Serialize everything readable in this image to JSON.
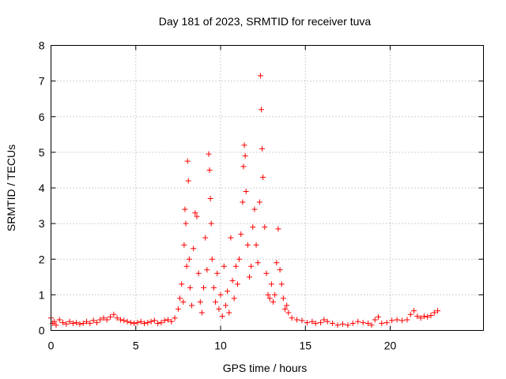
{
  "chart_data": {
    "type": "scatter",
    "title": "Day 181 of 2023, SRMTID for receiver tuva",
    "xlabel": "GPS time / hours",
    "ylabel": "SRMTID / TECUs",
    "xlim": [
      0,
      25.5
    ],
    "ylim": [
      0,
      8
    ],
    "xticks": [
      0,
      5,
      10,
      15,
      20
    ],
    "yticks": [
      0,
      1,
      2,
      3,
      4,
      5,
      6,
      7,
      8
    ],
    "grid": true,
    "marker": "+",
    "series_color": "#ff0000",
    "series": [
      {
        "name": "SRMTID",
        "points": [
          [
            0.0,
            0.35
          ],
          [
            0.1,
            0.2
          ],
          [
            0.2,
            0.25
          ],
          [
            0.3,
            0.15
          ],
          [
            0.5,
            0.3
          ],
          [
            0.7,
            0.22
          ],
          [
            0.9,
            0.18
          ],
          [
            1.1,
            0.25
          ],
          [
            1.3,
            0.2
          ],
          [
            1.5,
            0.22
          ],
          [
            1.7,
            0.18
          ],
          [
            1.9,
            0.2
          ],
          [
            2.1,
            0.25
          ],
          [
            2.3,
            0.2
          ],
          [
            2.5,
            0.28
          ],
          [
            2.7,
            0.22
          ],
          [
            2.9,
            0.3
          ],
          [
            3.1,
            0.35
          ],
          [
            3.3,
            0.3
          ],
          [
            3.5,
            0.38
          ],
          [
            3.7,
            0.45
          ],
          [
            3.9,
            0.35
          ],
          [
            4.1,
            0.3
          ],
          [
            4.3,
            0.28
          ],
          [
            4.5,
            0.25
          ],
          [
            4.7,
            0.22
          ],
          [
            4.9,
            0.2
          ],
          [
            5.1,
            0.22
          ],
          [
            5.3,
            0.25
          ],
          [
            5.5,
            0.2
          ],
          [
            5.7,
            0.22
          ],
          [
            5.9,
            0.25
          ],
          [
            6.1,
            0.28
          ],
          [
            6.3,
            0.2
          ],
          [
            6.5,
            0.22
          ],
          [
            6.7,
            0.28
          ],
          [
            6.9,
            0.3
          ],
          [
            7.1,
            0.25
          ],
          [
            7.3,
            0.35
          ],
          [
            7.5,
            0.6
          ],
          [
            7.6,
            0.9
          ],
          [
            7.7,
            1.3
          ],
          [
            7.8,
            0.8
          ],
          [
            7.85,
            2.4
          ],
          [
            7.9,
            3.4
          ],
          [
            7.95,
            3.0
          ],
          [
            8.0,
            1.8
          ],
          [
            8.05,
            4.75
          ],
          [
            8.1,
            4.2
          ],
          [
            8.15,
            2.0
          ],
          [
            8.2,
            1.2
          ],
          [
            8.3,
            0.7
          ],
          [
            8.4,
            2.3
          ],
          [
            8.5,
            3.3
          ],
          [
            8.6,
            3.2
          ],
          [
            8.7,
            1.6
          ],
          [
            8.8,
            0.8
          ],
          [
            8.9,
            0.5
          ],
          [
            9.0,
            1.2
          ],
          [
            9.1,
            2.6
          ],
          [
            9.2,
            1.7
          ],
          [
            9.3,
            4.95
          ],
          [
            9.35,
            4.5
          ],
          [
            9.4,
            3.7
          ],
          [
            9.45,
            3.0
          ],
          [
            9.5,
            2.0
          ],
          [
            9.6,
            1.2
          ],
          [
            9.7,
            0.8
          ],
          [
            9.8,
            1.6
          ],
          [
            9.9,
            0.6
          ],
          [
            10.0,
            1.0
          ],
          [
            10.1,
            0.4
          ],
          [
            10.2,
            1.8
          ],
          [
            10.3,
            0.7
          ],
          [
            10.4,
            1.1
          ],
          [
            10.5,
            0.5
          ],
          [
            10.6,
            2.6
          ],
          [
            10.7,
            1.4
          ],
          [
            10.8,
            0.9
          ],
          [
            10.9,
            1.8
          ],
          [
            11.0,
            1.3
          ],
          [
            11.1,
            2.0
          ],
          [
            11.2,
            2.7
          ],
          [
            11.3,
            3.6
          ],
          [
            11.35,
            4.6
          ],
          [
            11.4,
            5.2
          ],
          [
            11.45,
            4.9
          ],
          [
            11.5,
            3.9
          ],
          [
            11.6,
            2.4
          ],
          [
            11.7,
            1.5
          ],
          [
            11.8,
            1.8
          ],
          [
            11.9,
            2.9
          ],
          [
            12.0,
            3.4
          ],
          [
            12.1,
            2.4
          ],
          [
            12.2,
            1.9
          ],
          [
            12.3,
            3.6
          ],
          [
            12.35,
            7.15
          ],
          [
            12.4,
            6.2
          ],
          [
            12.45,
            5.1
          ],
          [
            12.5,
            4.3
          ],
          [
            12.6,
            2.9
          ],
          [
            12.7,
            1.6
          ],
          [
            12.8,
            1.0
          ],
          [
            12.9,
            0.9
          ],
          [
            13.0,
            1.3
          ],
          [
            13.1,
            0.8
          ],
          [
            13.2,
            1.0
          ],
          [
            13.3,
            1.9
          ],
          [
            13.4,
            2.85
          ],
          [
            13.5,
            1.7
          ],
          [
            13.6,
            1.3
          ],
          [
            13.7,
            0.9
          ],
          [
            13.8,
            0.6
          ],
          [
            13.9,
            0.7
          ],
          [
            14.0,
            0.5
          ],
          [
            14.2,
            0.35
          ],
          [
            14.5,
            0.3
          ],
          [
            14.8,
            0.28
          ],
          [
            15.1,
            0.22
          ],
          [
            15.4,
            0.25
          ],
          [
            15.6,
            0.2
          ],
          [
            15.9,
            0.22
          ],
          [
            16.1,
            0.3
          ],
          [
            16.3,
            0.25
          ],
          [
            16.6,
            0.2
          ],
          [
            16.9,
            0.15
          ],
          [
            17.2,
            0.18
          ],
          [
            17.5,
            0.15
          ],
          [
            17.8,
            0.2
          ],
          [
            18.1,
            0.25
          ],
          [
            18.4,
            0.22
          ],
          [
            18.7,
            0.2
          ],
          [
            18.9,
            0.15
          ],
          [
            19.1,
            0.3
          ],
          [
            19.3,
            0.38
          ],
          [
            19.5,
            0.2
          ],
          [
            19.8,
            0.22
          ],
          [
            20.1,
            0.28
          ],
          [
            20.4,
            0.3
          ],
          [
            20.7,
            0.28
          ],
          [
            21.0,
            0.3
          ],
          [
            21.2,
            0.45
          ],
          [
            21.4,
            0.55
          ],
          [
            21.6,
            0.4
          ],
          [
            21.8,
            0.35
          ],
          [
            22.0,
            0.4
          ],
          [
            22.2,
            0.38
          ],
          [
            22.4,
            0.42
          ],
          [
            22.6,
            0.5
          ],
          [
            22.8,
            0.55
          ]
        ]
      }
    ]
  }
}
